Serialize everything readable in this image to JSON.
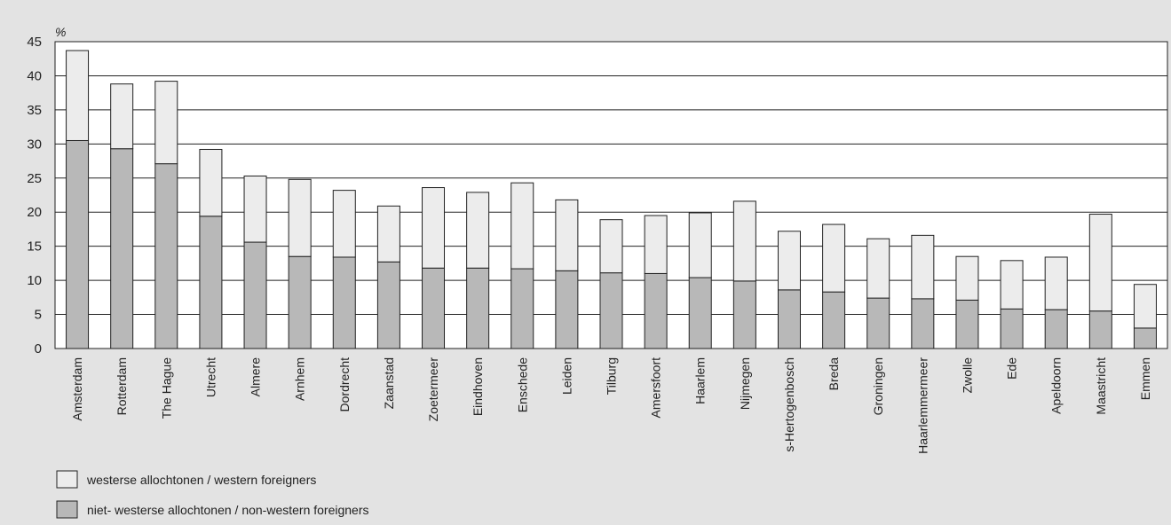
{
  "chart_data": {
    "type": "bar",
    "stacked": true,
    "unit_label": "%",
    "title": "",
    "xlabel": "",
    "ylabel": "",
    "ylim": [
      0,
      45
    ],
    "yticks": [
      0,
      5,
      10,
      15,
      20,
      25,
      30,
      35,
      40,
      45
    ],
    "grid": true,
    "legend_position": "bottom-left",
    "categories": [
      "Amsterdam",
      "Rotterdam",
      "The Hague",
      "Utrecht",
      "Almere",
      "Arnhem",
      "Dordrecht",
      "Zaanstad",
      "Zoetermeer",
      "Eindhoven",
      "Enschede",
      "Leiden",
      "Tilburg",
      "Amersfoort",
      "Haarlem",
      "Nijmegen",
      "s-Hertogenbosch",
      "Breda",
      "Groningen",
      "Haarlemmermeer",
      "Zwolle",
      "Ede",
      "Apeldoorn",
      "Maastricht",
      "Emmen"
    ],
    "series": [
      {
        "name": "niet- westerse allochtonen / non-western foreigners",
        "color": "#b8b8b8",
        "values": [
          30.5,
          29.3,
          27.1,
          19.4,
          15.6,
          13.5,
          13.4,
          12.7,
          11.8,
          11.8,
          11.7,
          11.4,
          11.1,
          11.0,
          10.4,
          9.9,
          8.6,
          8.3,
          7.4,
          7.3,
          7.1,
          5.8,
          5.7,
          5.5,
          3.0
        ]
      },
      {
        "name": "westerse allochtonen / western foreigners",
        "color": "#ececec",
        "values": [
          13.2,
          9.5,
          12.1,
          9.8,
          9.7,
          11.3,
          9.8,
          8.2,
          11.8,
          11.1,
          12.6,
          10.4,
          7.8,
          8.5,
          9.5,
          11.7,
          8.6,
          9.9,
          8.7,
          9.3,
          6.4,
          7.1,
          7.7,
          14.2,
          6.4
        ]
      }
    ]
  }
}
